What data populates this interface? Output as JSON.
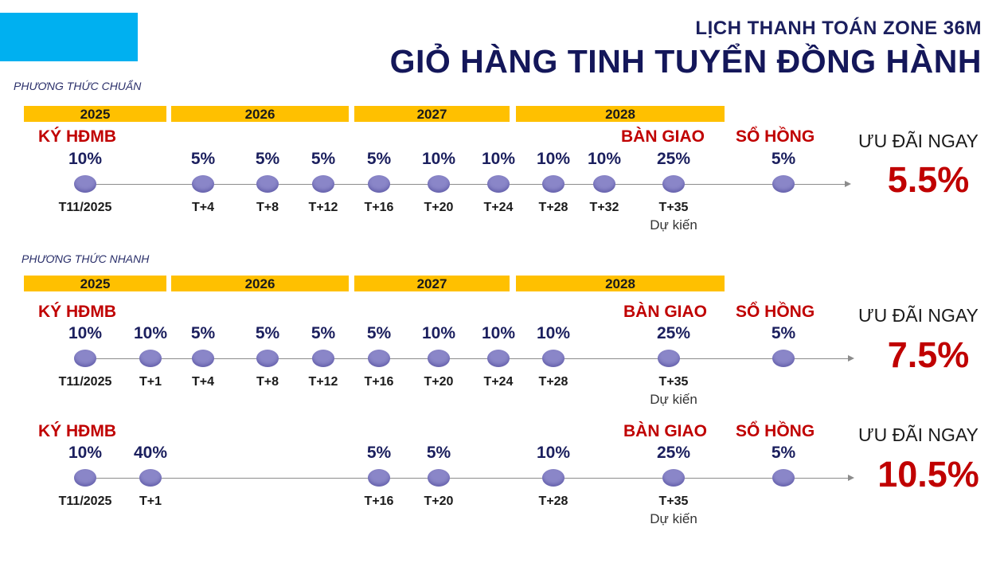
{
  "header": {
    "subtitle": "LỊCH THANH TOÁN ZONE 36M",
    "title": "GIỎ HÀNG TINH TUYỂN ĐỒNG HÀNH"
  },
  "colors": {
    "accent_blue": "#00b0f0",
    "year_bar": "#ffc000",
    "highlight_red": "#c00000",
    "navy": "#1b1f5e",
    "dot": "#8a86c8"
  },
  "labels": {
    "sign": "KÝ HĐMB",
    "handover": "BÀN GIAO",
    "pink_book": "SỔ HỒNG",
    "estimate": "Dự kiến",
    "offer": "ƯU ĐÃI NGAY"
  },
  "years": [
    "2025",
    "2026",
    "2027",
    "2028"
  ],
  "schedules": [
    {
      "method": "PHƯƠNG THỨC CHUẨN",
      "offer": "5.5%",
      "milestones": [
        {
          "pct": "10%",
          "tick": "T11/2025"
        },
        {
          "pct": "5%",
          "tick": "T+4"
        },
        {
          "pct": "5%",
          "tick": "T+8"
        },
        {
          "pct": "5%",
          "tick": "T+12"
        },
        {
          "pct": "5%",
          "tick": "T+16"
        },
        {
          "pct": "10%",
          "tick": "T+20"
        },
        {
          "pct": "10%",
          "tick": "T+24"
        },
        {
          "pct": "10%",
          "tick": "T+28"
        },
        {
          "pct": "10%",
          "tick": "T+32"
        },
        {
          "pct": "25%",
          "tick": "T+35"
        },
        {
          "pct": "5%",
          "tick": ""
        }
      ]
    },
    {
      "method": "PHƯƠNG THỨC NHANH",
      "offer": "7.5%",
      "milestones": [
        {
          "pct": "10%",
          "tick": "T11/2025"
        },
        {
          "pct": "10%",
          "tick": "T+1"
        },
        {
          "pct": "5%",
          "tick": "T+4"
        },
        {
          "pct": "5%",
          "tick": "T+8"
        },
        {
          "pct": "5%",
          "tick": "T+12"
        },
        {
          "pct": "5%",
          "tick": "T+16"
        },
        {
          "pct": "10%",
          "tick": "T+20"
        },
        {
          "pct": "10%",
          "tick": "T+24"
        },
        {
          "pct": "10%",
          "tick": "T+28"
        },
        {
          "pct": "25%",
          "tick": "T+35"
        },
        {
          "pct": "5%",
          "tick": ""
        }
      ]
    },
    {
      "method": "",
      "offer": "10.5%",
      "milestones": [
        {
          "pct": "10%",
          "tick": "T11/2025"
        },
        {
          "pct": "40%",
          "tick": "T+1"
        },
        {
          "pct": "5%",
          "tick": "T+16"
        },
        {
          "pct": "5%",
          "tick": "T+20"
        },
        {
          "pct": "10%",
          "tick": "T+28"
        },
        {
          "pct": "25%",
          "tick": "T+35"
        },
        {
          "pct": "5%",
          "tick": ""
        }
      ]
    }
  ]
}
